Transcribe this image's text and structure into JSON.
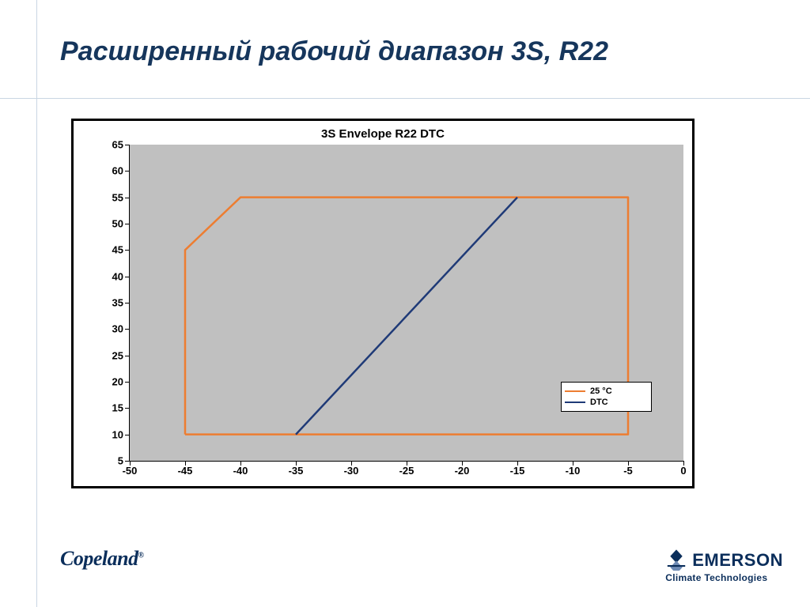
{
  "title": "Расширенный рабочий диапазон 3S, R22",
  "chart": {
    "type": "line",
    "title": "3S Envelope R22 DTC",
    "background_color": "#ffffff",
    "plot_background_color": "#c0c0c0",
    "outer_border_color": "#000000",
    "outer_border_width": 3,
    "axis_color": "#000000",
    "tick_fontsize": 13,
    "tick_fontweight": "bold",
    "title_fontsize": 15,
    "title_fontweight": "bold",
    "x": {
      "min": -50,
      "max": 0,
      "step": 5,
      "labels": [
        "-50",
        "-45",
        "-40",
        "-35",
        "-30",
        "-25",
        "-20",
        "-15",
        "-10",
        "-5",
        "0"
      ]
    },
    "y": {
      "min": 5,
      "max": 65,
      "step": 5,
      "labels": [
        "5",
        "10",
        "15",
        "20",
        "25",
        "30",
        "35",
        "40",
        "45",
        "50",
        "55",
        "60",
        "65"
      ]
    },
    "series": [
      {
        "name": "25 °C",
        "color": "#ed7d31",
        "line_width": 2.5,
        "points": [
          [
            -45,
            10
          ],
          [
            -45,
            45
          ],
          [
            -40,
            55
          ],
          [
            -5,
            55
          ],
          [
            -5,
            10
          ],
          [
            -45,
            10
          ]
        ]
      },
      {
        "name": "DTC",
        "color": "#1f3a77",
        "line_width": 2.5,
        "points": [
          [
            -35,
            10
          ],
          [
            -15,
            55
          ]
        ]
      }
    ],
    "legend": {
      "position": "inside-lower-right",
      "items": [
        {
          "label": "25 °C",
          "color": "#ed7d31"
        },
        {
          "label": "DTC",
          "color": "#1f3a77"
        }
      ],
      "border_color": "#000000",
      "background_color": "#ffffff",
      "fontsize": 11
    }
  },
  "brand_left": "Copeland",
  "brand_right_name": "EMERSON",
  "brand_right_sub": "Climate Technologies",
  "colors": {
    "title_color": "#16365c",
    "frame_line_color": "#c9d6e3",
    "brand_color": "#0b2e5b"
  }
}
